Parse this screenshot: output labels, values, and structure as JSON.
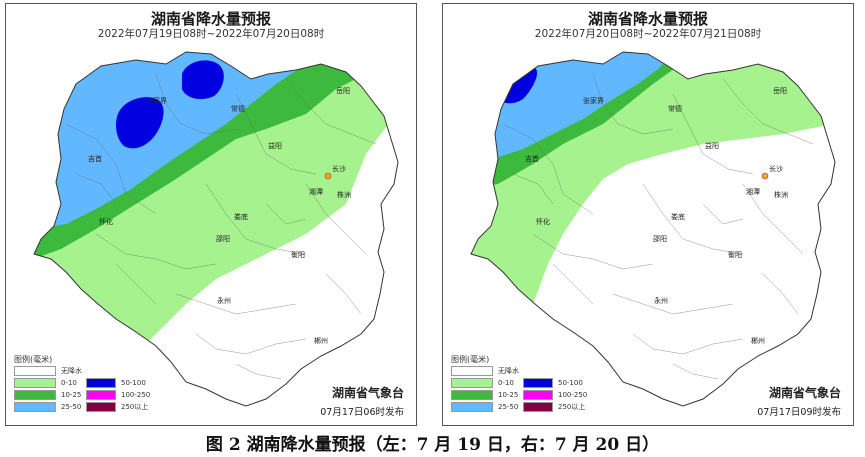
{
  "panels": [
    {
      "title": "湖南省降水量预报",
      "date_range": "2022年07月19日08时~2022年07月20日08时",
      "issued": "07月17日06时发布"
    },
    {
      "title": "湖南省降水量预报",
      "date_range": "2022年07月20日08时~2022年07月21日08时",
      "issued": "07月17日09时发布"
    }
  ],
  "agency": "湖南省气象台",
  "legend": {
    "title": "图例(毫米)",
    "items": [
      {
        "label": "无降水",
        "color": "#ffffff"
      },
      {
        "label": "0-10",
        "color": "#a6f28e"
      },
      {
        "label": "10-25",
        "color": "#3dba3d"
      },
      {
        "label": "25-50",
        "color": "#61b8ff"
      },
      {
        "label": "50-100",
        "color": "#0000e1"
      },
      {
        "label": "100-250",
        "color": "#fa00fa"
      },
      {
        "label": "250以上",
        "color": "#800040"
      }
    ]
  },
  "cities": {
    "zhangjiajie": "张家界",
    "changde": "常德",
    "yueyang": "岳阳",
    "jishou": "吉首",
    "yiyang": "益阳",
    "changsha": "长沙",
    "xiangtan": "湘潭",
    "zhuzhou": "株洲",
    "huaihua": "怀化",
    "loudi": "娄底",
    "shaoyang": "邵阳",
    "hengyang": "衡阳",
    "yongzhou": "永州",
    "chenzhou": "郴州"
  },
  "caption": "图 2  湖南降水量预报（左：7 月 19 日，右：7 月 20 日）"
}
